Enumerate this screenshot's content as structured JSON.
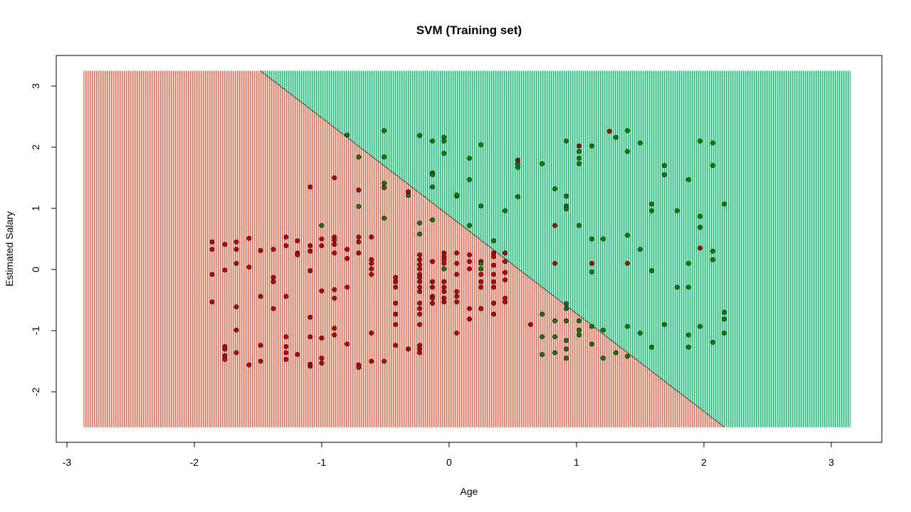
{
  "chart_data": {
    "type": "scatter",
    "title": "SVM (Training set)",
    "xlabel": "Age",
    "ylabel": "Estimated Salary",
    "xlim": [
      -3,
      3
    ],
    "ylim": [
      -2.5,
      3.2
    ],
    "x_ticks": [
      -3,
      -2,
      -1,
      0,
      1,
      2,
      3
    ],
    "y_ticks": [
      -2,
      -1,
      0,
      1,
      2,
      3
    ],
    "grid": false,
    "legend": "none",
    "decision_regions": {
      "grid_x_range": [
        -2.87,
        3.15
      ],
      "grid_y_range": [
        -2.58,
        3.25
      ],
      "boundary_line": {
        "intercept": 0.88,
        "slope": -1.6
      },
      "colors": {
        "class_0": "tomato",
        "class_1": "springgreen3"
      }
    },
    "series": [
      {
        "color": "red3",
        "points": [
          [
            -1.86,
            0.45
          ],
          [
            -1.86,
            0.33
          ],
          [
            -1.86,
            -0.08
          ],
          [
            -1.86,
            -0.53
          ],
          [
            -1.76,
            0.41
          ],
          [
            -1.76,
            -0.01
          ],
          [
            -1.76,
            -1.26
          ],
          [
            -1.76,
            -1.3
          ],
          [
            -1.76,
            -1.41
          ],
          [
            -1.76,
            -1.47
          ],
          [
            -1.67,
            0.45
          ],
          [
            -1.67,
            0.33
          ],
          [
            -1.67,
            0.1
          ],
          [
            -1.67,
            -0.61
          ],
          [
            -1.67,
            -0.99
          ],
          [
            -1.67,
            -1.36
          ],
          [
            -1.57,
            0.51
          ],
          [
            -1.57,
            0.04
          ],
          [
            -1.57,
            -1.56
          ],
          [
            -1.48,
            0.31
          ],
          [
            -1.48,
            -0.44
          ],
          [
            -1.48,
            -1.24
          ],
          [
            -1.48,
            -1.5
          ],
          [
            -1.38,
            0.33
          ],
          [
            -1.38,
            -0.13
          ],
          [
            -1.38,
            -0.2
          ],
          [
            -1.38,
            -0.64
          ],
          [
            -1.28,
            0.53
          ],
          [
            -1.28,
            0.39
          ],
          [
            -1.28,
            -0.44
          ],
          [
            -1.28,
            -1.1
          ],
          [
            -1.28,
            -1.26
          ],
          [
            -1.28,
            -1.36
          ],
          [
            -1.28,
            -1.47
          ],
          [
            -1.19,
            0.47
          ],
          [
            -1.19,
            0.27
          ],
          [
            -1.19,
            0.24
          ],
          [
            -1.19,
            -1.39
          ],
          [
            -1.09,
            1.35
          ],
          [
            -1.09,
            0.39
          ],
          [
            -1.09,
            0.3
          ],
          [
            -1.09,
            -0.02
          ],
          [
            -1.09,
            -0.78
          ],
          [
            -1.09,
            -1.1
          ],
          [
            -1.09,
            -1.55
          ],
          [
            -1.09,
            -1.58
          ],
          [
            -1,
            0.5
          ],
          [
            -1,
            0.39
          ],
          [
            -1,
            -0.35
          ],
          [
            -1,
            -1.12
          ],
          [
            -1,
            -1.45
          ],
          [
            -1,
            -1.53
          ],
          [
            -0.9,
            1.5
          ],
          [
            -0.9,
            0.53
          ],
          [
            -0.9,
            0.48
          ],
          [
            -0.9,
            0.41
          ],
          [
            -0.9,
            0.27
          ],
          [
            -0.9,
            -0.33
          ],
          [
            -0.9,
            -0.47
          ],
          [
            -0.9,
            -0.96
          ],
          [
            -0.9,
            -1.07
          ],
          [
            -0.8,
            0.33
          ],
          [
            -0.8,
            0.18
          ],
          [
            -0.8,
            -0.29
          ],
          [
            -0.8,
            -1.22
          ],
          [
            -0.71,
            1.3
          ],
          [
            -0.71,
            0.53
          ],
          [
            -0.71,
            0.45
          ],
          [
            -0.71,
            0.27
          ],
          [
            -0.71,
            -1.56
          ],
          [
            -0.71,
            -1.6
          ],
          [
            -0.61,
            0.53
          ],
          [
            -0.61,
            0.16
          ],
          [
            -0.61,
            0.1
          ],
          [
            -0.61,
            0.01
          ],
          [
            -0.61,
            -0.08
          ],
          [
            -0.61,
            -1.04
          ],
          [
            -0.61,
            -1.5
          ],
          [
            -0.51,
            -1.5
          ],
          [
            -0.42,
            -0.13
          ],
          [
            -0.42,
            -0.2
          ],
          [
            -0.42,
            -0.29
          ],
          [
            -0.42,
            -0.55
          ],
          [
            -0.42,
            -0.73
          ],
          [
            -0.42,
            -0.9
          ],
          [
            -0.42,
            -1.24
          ],
          [
            -0.32,
            1.27
          ],
          [
            -0.32,
            -1.3
          ],
          [
            -0.23,
            0.24
          ],
          [
            -0.23,
            0.16
          ],
          [
            -0.23,
            0.08
          ],
          [
            -0.23,
            0.01
          ],
          [
            -0.23,
            -0.08
          ],
          [
            -0.23,
            -0.13
          ],
          [
            -0.23,
            -0.2
          ],
          [
            -0.23,
            -0.29
          ],
          [
            -0.23,
            -0.36
          ],
          [
            -0.23,
            -0.55
          ],
          [
            -0.23,
            -0.64
          ],
          [
            -0.23,
            -0.73
          ],
          [
            -0.23,
            -0.9
          ],
          [
            -0.23,
            -1.24
          ],
          [
            -0.23,
            -1.3
          ],
          [
            -0.23,
            -1.36
          ],
          [
            -0.13,
            0.13
          ],
          [
            -0.13,
            -0.2
          ],
          [
            -0.13,
            -0.29
          ],
          [
            -0.13,
            -0.44
          ],
          [
            -0.13,
            -0.47
          ],
          [
            -0.13,
            -0.55
          ],
          [
            -0.04,
            0.27
          ],
          [
            -0.04,
            0.21
          ],
          [
            -0.04,
            0.16
          ],
          [
            -0.04,
            0.1
          ],
          [
            -0.04,
            -0.2
          ],
          [
            -0.04,
            -0.29
          ],
          [
            -0.04,
            -0.36
          ],
          [
            -0.04,
            -0.47
          ],
          [
            -0.04,
            -0.53
          ],
          [
            0.06,
            0.27
          ],
          [
            0.06,
            0.1
          ],
          [
            0.06,
            -0.08
          ],
          [
            0.06,
            -0.36
          ],
          [
            0.06,
            -0.44
          ],
          [
            0.06,
            -0.53
          ],
          [
            0.06,
            -1.04
          ],
          [
            0.16,
            0.24
          ],
          [
            0.16,
            0.13
          ],
          [
            0.16,
            0.01
          ],
          [
            0.16,
            -0.64
          ],
          [
            0.16,
            -0.81
          ],
          [
            0.25,
            0.13
          ],
          [
            0.25,
            -0.08
          ],
          [
            0.25,
            -0.2
          ],
          [
            0.25,
            -0.29
          ],
          [
            0.25,
            -0.64
          ],
          [
            0.35,
            0.27
          ],
          [
            0.35,
            0.21
          ],
          [
            0.35,
            0.07
          ],
          [
            0.35,
            -0.08
          ],
          [
            0.35,
            -0.2
          ],
          [
            0.35,
            -0.29
          ],
          [
            0.35,
            -0.55
          ],
          [
            0.35,
            -0.73
          ],
          [
            0.44,
            0.27
          ],
          [
            0.44,
            0.13
          ],
          [
            0.44,
            -0.05
          ],
          [
            0.44,
            -0.17
          ],
          [
            0.44,
            -0.47
          ],
          [
            0.44,
            -0.53
          ],
          [
            0.54,
            1.79
          ],
          [
            0.64,
            -0.9
          ],
          [
            0.83,
            0.72
          ],
          [
            0.83,
            0.1
          ],
          [
            1.02,
            2.02
          ],
          [
            1.12,
            0.1
          ],
          [
            1.97,
            0.35
          ],
          [
            1.26,
            2.26
          ],
          [
            1.4,
            0.1
          ]
        ]
      },
      {
        "color": "green4",
        "points": [
          [
            -1,
            0.72
          ],
          [
            -0.8,
            2.2
          ],
          [
            -0.71,
            1.84
          ],
          [
            -0.71,
            1.03
          ],
          [
            -0.51,
            2.27
          ],
          [
            -0.51,
            1.84
          ],
          [
            -0.51,
            1.41
          ],
          [
            -0.51,
            1.34
          ],
          [
            -0.51,
            0.84
          ],
          [
            -0.32,
            1.21
          ],
          [
            -0.23,
            2.19
          ],
          [
            -0.23,
            0.76
          ],
          [
            -0.23,
            0.58
          ],
          [
            -0.13,
            2.1
          ],
          [
            -0.13,
            1.58
          ],
          [
            -0.13,
            1.55
          ],
          [
            -0.13,
            1.35
          ],
          [
            -0.13,
            0.81
          ],
          [
            -0.04,
            2.16
          ],
          [
            -0.04,
            2.1
          ],
          [
            -0.04,
            1.9
          ],
          [
            -0.04,
            0.01
          ],
          [
            0.06,
            1.2
          ],
          [
            0.06,
            1.22
          ],
          [
            0.16,
            1.82
          ],
          [
            0.16,
            1.47
          ],
          [
            0.16,
            0.72
          ],
          [
            0.25,
            2.04
          ],
          [
            0.25,
            1.04
          ],
          [
            0.25,
            0.01
          ],
          [
            0.35,
            0.47
          ],
          [
            0.44,
            0.96
          ],
          [
            0.54,
            1.73
          ],
          [
            0.54,
            1.67
          ],
          [
            0.54,
            1.19
          ],
          [
            0.73,
            1.73
          ],
          [
            0.73,
            -0.73
          ],
          [
            0.73,
            -1.1
          ],
          [
            0.73,
            -1.39
          ],
          [
            0.83,
            1.32
          ],
          [
            0.83,
            -0.84
          ],
          [
            0.83,
            -1.1
          ],
          [
            0.83,
            -1.36
          ],
          [
            0.92,
            2.1
          ],
          [
            0.92,
            1.2
          ],
          [
            0.92,
            1.04
          ],
          [
            0.92,
            0.99
          ],
          [
            0.92,
            -0.56
          ],
          [
            0.92,
            -0.64
          ],
          [
            0.92,
            -0.84
          ],
          [
            0.92,
            -1.16
          ],
          [
            0.92,
            -1.3
          ],
          [
            0.92,
            -1.45
          ],
          [
            1.02,
            1.93
          ],
          [
            1.02,
            1.82
          ],
          [
            1.02,
            1.73
          ],
          [
            1.02,
            0.72
          ],
          [
            1.02,
            -0.84
          ],
          [
            1.02,
            -0.99
          ],
          [
            1.02,
            -1.07
          ],
          [
            1.12,
            2.02
          ],
          [
            1.12,
            0.5
          ],
          [
            1.12,
            -0.04
          ],
          [
            1.12,
            -0.93
          ],
          [
            1.12,
            -1.22
          ],
          [
            1.21,
            0.5
          ],
          [
            1.21,
            -0.99
          ],
          [
            1.21,
            -1.45
          ],
          [
            1.31,
            2.16
          ],
          [
            1.31,
            -1.36
          ],
          [
            1.4,
            1.93
          ],
          [
            1.4,
            0.56
          ],
          [
            1.4,
            -0.93
          ],
          [
            1.4,
            -1.42
          ],
          [
            1.5,
            2.07
          ],
          [
            1.5,
            0.33
          ],
          [
            1.5,
            -1.04
          ],
          [
            1.59,
            1.07
          ],
          [
            1.59,
            0.96
          ],
          [
            1.59,
            -0.02
          ],
          [
            1.59,
            -1.27
          ],
          [
            1.69,
            1.7
          ],
          [
            1.69,
            1.55
          ],
          [
            1.69,
            -0.9
          ],
          [
            1.79,
            0.96
          ],
          [
            1.79,
            -0.29
          ],
          [
            1.88,
            1.47
          ],
          [
            1.88,
            0.1
          ],
          [
            1.88,
            -0.29
          ],
          [
            1.88,
            -1.07
          ],
          [
            1.88,
            -1.27
          ],
          [
            1.97,
            2.1
          ],
          [
            1.97,
            0.87
          ],
          [
            1.97,
            0.69
          ],
          [
            1.97,
            -0.93
          ],
          [
            2.07,
            2.07
          ],
          [
            2.07,
            1.7
          ],
          [
            2.07,
            0.3
          ],
          [
            2.07,
            0.16
          ],
          [
            2.07,
            -1.19
          ],
          [
            2.16,
            1.07
          ],
          [
            2.16,
            -0.7
          ],
          [
            2.16,
            -0.81
          ],
          [
            2.16,
            -1.04
          ],
          [
            -0.23,
            2.19
          ],
          [
            0.25,
            0.1
          ],
          [
            1.4,
            2.27
          ]
        ]
      }
    ]
  }
}
